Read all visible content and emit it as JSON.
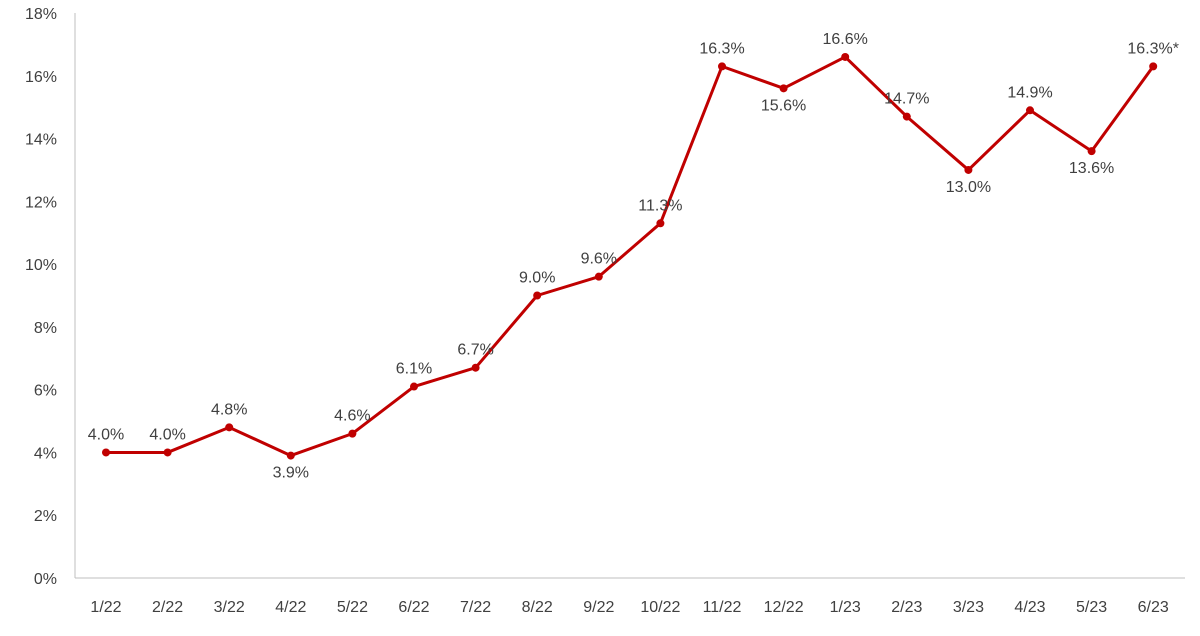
{
  "chart_data": {
    "type": "line",
    "categories": [
      "1/22",
      "2/22",
      "3/22",
      "4/22",
      "5/22",
      "6/22",
      "7/22",
      "8/22",
      "9/22",
      "10/22",
      "11/22",
      "12/22",
      "1/23",
      "2/23",
      "3/23",
      "4/23",
      "5/23",
      "6/23"
    ],
    "series": [
      {
        "values": [
          4.0,
          4.0,
          4.8,
          3.9,
          4.6,
          6.1,
          6.7,
          9.0,
          9.6,
          11.3,
          16.3,
          15.6,
          16.6,
          14.7,
          13.0,
          14.9,
          13.6,
          16.3
        ],
        "labels": [
          "4.0%",
          "4.0%",
          "4.8%",
          "3.9%",
          "4.6%",
          "6.1%",
          "6.7%",
          "9.0%",
          "9.6%",
          "11.3%",
          "16.3%",
          "15.6%",
          "16.6%",
          "14.7%",
          "13.0%",
          "14.9%",
          "13.6%",
          "16.3%*"
        ]
      }
    ],
    "ylim": [
      0,
      18
    ],
    "yticks": [
      "0%",
      "2%",
      "4%",
      "6%",
      "8%",
      "10%",
      "12%",
      "14%",
      "16%",
      "18%"
    ],
    "grid": false,
    "legend": "none",
    "colors": {
      "line": "#C00000",
      "axis": "#BFBFBF",
      "text": "#404040"
    }
  }
}
